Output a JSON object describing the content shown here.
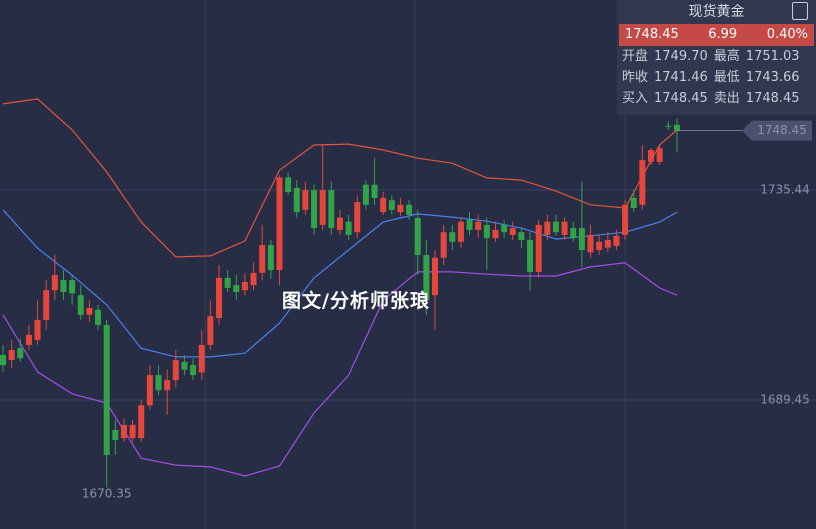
{
  "chart_data": {
    "type": "candlestick",
    "open": [
      1699.3,
      1698.2,
      1700.8,
      1701.5,
      1702.6,
      1707.0,
      1713.5,
      1715.7,
      1715.7,
      1712.4,
      1708.1,
      1709.2,
      1705.9,
      1682.9,
      1681.1,
      1681.1,
      1681.1,
      1688.3,
      1694.9,
      1691.6,
      1693.8,
      1697.8,
      1697.1,
      1695.5,
      1701.5,
      1707.4,
      1716.2,
      1714.6,
      1713.5,
      1714.6,
      1717.3,
      1723.4,
      1717.9,
      1738.2,
      1735.9,
      1731.1,
      1735.4,
      1727.8,
      1735.4,
      1726.7,
      1728.5,
      1726.2,
      1736.6,
      1736.6,
      1730.6,
      1733.2,
      1730.6,
      1732.2,
      1729.3,
      1721.2,
      1712.4,
      1720.6,
      1726.2,
      1724.1,
      1728.9,
      1726.7,
      1727.8,
      1724.9,
      1727.8,
      1725.6,
      1726.2,
      1724.5,
      1717.5,
      1725.6,
      1728.5,
      1725.6,
      1727.1,
      1727.1,
      1721.8,
      1722.3,
      1722.8,
      1723.2,
      1725.6,
      1733.7,
      1732.2,
      1741.6,
      1741.6,
      1749.5,
      1749.7
    ],
    "high": [
      1701.5,
      1702.6,
      1703.0,
      1705.9,
      1711.3,
      1715.7,
      1721.2,
      1717.9,
      1716.8,
      1714.6,
      1711.3,
      1710.3,
      1707.0,
      1685.1,
      1685.5,
      1685.1,
      1689.5,
      1697.1,
      1697.1,
      1696.1,
      1700.4,
      1699.3,
      1698.6,
      1704.8,
      1711.3,
      1719.0,
      1717.9,
      1716.8,
      1717.3,
      1719.6,
      1727.8,
      1724.5,
      1738.7,
      1739.4,
      1737.6,
      1737.2,
      1736.6,
      1745.3,
      1737.2,
      1731.1,
      1730.0,
      1734.3,
      1737.6,
      1742.4,
      1735.0,
      1734.3,
      1733.7,
      1733.2,
      1731.1,
      1724.5,
      1722.3,
      1727.8,
      1727.8,
      1729.4,
      1730.6,
      1730.0,
      1729.4,
      1728.5,
      1728.9,
      1728.5,
      1727.1,
      1726.2,
      1728.9,
      1730.0,
      1730.0,
      1729.4,
      1728.5,
      1737.2,
      1727.8,
      1725.6,
      1726.2,
      1726.7,
      1733.2,
      1735.4,
      1745.3,
      1744.6,
      1745.3,
      1750.5,
      1751.03
    ],
    "low": [
      1695.6,
      1696.5,
      1697.8,
      1700.4,
      1701.5,
      1704.8,
      1711.3,
      1711.3,
      1710.3,
      1707.0,
      1706.6,
      1704.8,
      1670.35,
      1677.4,
      1680.3,
      1680.3,
      1680.3,
      1687.3,
      1690.5,
      1686.2,
      1692.2,
      1694.9,
      1693.8,
      1693.8,
      1700.4,
      1705.9,
      1713.1,
      1711.3,
      1712.4,
      1713.5,
      1715.7,
      1716.0,
      1714.6,
      1734.3,
      1729.4,
      1730.0,
      1725.6,
      1726.7,
      1725.6,
      1725.6,
      1724.5,
      1724.9,
      1731.1,
      1732.2,
      1730.0,
      1730.0,
      1729.7,
      1728.9,
      1716.8,
      1708.1,
      1704.8,
      1719.0,
      1722.3,
      1722.8,
      1725.6,
      1724.9,
      1717.9,
      1724.1,
      1724.9,
      1724.5,
      1722.8,
      1713.5,
      1716.2,
      1724.5,
      1725.4,
      1724.5,
      1724.1,
      1718.4,
      1720.6,
      1721.2,
      1721.9,
      1722.3,
      1724.5,
      1730.6,
      1731.1,
      1740.9,
      1740.9,
      1748.6,
      1743.66
    ],
    "close": [
      1697.1,
      1700.4,
      1698.6,
      1703.7,
      1707.0,
      1713.5,
      1716.8,
      1713.1,
      1712.8,
      1708.1,
      1709.6,
      1705.9,
      1677.4,
      1680.7,
      1684.0,
      1684.0,
      1688.3,
      1694.9,
      1691.6,
      1693.8,
      1698.2,
      1696.1,
      1694.9,
      1701.5,
      1707.8,
      1716.2,
      1714.0,
      1713.1,
      1715.3,
      1717.3,
      1723.4,
      1717.9,
      1738.2,
      1735.0,
      1730.6,
      1735.4,
      1727.1,
      1735.4,
      1727.1,
      1729.4,
      1725.6,
      1732.8,
      1732.2,
      1733.7,
      1733.7,
      1731.1,
      1732.2,
      1730.0,
      1721.2,
      1711.3,
      1720.6,
      1726.2,
      1724.1,
      1728.5,
      1726.7,
      1728.5,
      1724.9,
      1726.7,
      1726.2,
      1727.1,
      1724.5,
      1717.5,
      1727.8,
      1728.5,
      1726.2,
      1728.5,
      1724.9,
      1722.3,
      1725.6,
      1724.1,
      1724.5,
      1725.4,
      1732.2,
      1731.5,
      1742.0,
      1744.2,
      1744.6,
      1749.3,
      1748.45
    ],
    "up_color": "#e5473c",
    "down_color": "#33a34a",
    "lines": [
      {
        "color": "#e0553f",
        "x": [
          0,
          4,
          8,
          12,
          16,
          20,
          24,
          28,
          32,
          36,
          40,
          44,
          48,
          52,
          56,
          60,
          64,
          68,
          72,
          76,
          78
        ],
        "values": [
          1754.3,
          1755.4,
          1748.6,
          1739.4,
          1728.4,
          1720.8,
          1721.0,
          1724.3,
          1739.8,
          1745.3,
          1745.5,
          1744.2,
          1742.4,
          1741.3,
          1738.1,
          1737.6,
          1735.2,
          1732.2,
          1731.5,
          1745.3,
          1748.6
        ]
      },
      {
        "color": "#4d7ff0",
        "x": [
          0,
          4,
          8,
          12,
          16,
          20,
          24,
          28,
          32,
          36,
          40,
          44,
          48,
          52,
          56,
          60,
          64,
          68,
          72,
          76,
          78
        ],
        "values": [
          1731.1,
          1722.7,
          1716.8,
          1710.3,
          1700.8,
          1698.9,
          1698.9,
          1699.7,
          1706.3,
          1716.2,
          1722.3,
          1728.4,
          1730.2,
          1729.5,
          1728.6,
          1727.1,
          1724.7,
          1725.4,
          1726.2,
          1728.4,
          1730.6
        ]
      },
      {
        "color": "#a24ee6",
        "x": [
          0,
          4,
          8,
          12,
          16,
          20,
          24,
          28,
          32,
          36,
          40,
          44,
          48,
          52,
          56,
          60,
          64,
          68,
          72,
          76,
          78
        ],
        "values": [
          1708.1,
          1695.6,
          1690.8,
          1688.8,
          1676.7,
          1675.2,
          1674.8,
          1672.8,
          1675.0,
          1686.6,
          1694.9,
          1711.3,
          1717.5,
          1717.5,
          1717.0,
          1716.6,
          1716.6,
          1718.6,
          1719.5,
          1714.0,
          1712.4
        ]
      }
    ],
    "ylim": [
      1661.2,
      1777.05
    ],
    "yticks": [
      1735.44,
      1689.45
    ],
    "grid": true,
    "high_label": "1751.03",
    "low_label": "1670.35",
    "last_price_label": "1748.45"
  },
  "quote_panel": {
    "title": "现货黄金",
    "price": "1748.45",
    "change": "6.99",
    "change_pct": "0.40%",
    "rows": [
      [
        "开盘",
        "1749.70",
        "最高",
        "1751.03"
      ],
      [
        "昨收",
        "1741.46",
        "最低",
        "1743.66"
      ],
      [
        "买入",
        "1748.45",
        "卖出",
        "1748.45"
      ]
    ]
  },
  "watermark": "图文/分析师张琅"
}
